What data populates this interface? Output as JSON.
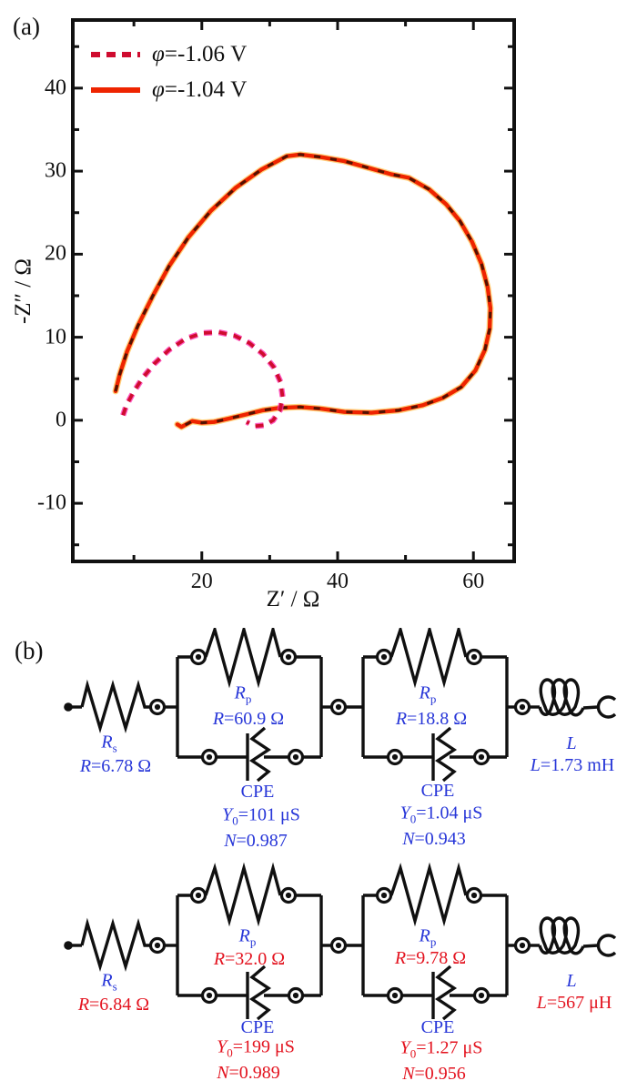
{
  "colors": {
    "symbol_blue": "#2736d8",
    "circuit_top_value": "#2736d8",
    "circuit_bottom_value": "#e3131f",
    "solid_line": "#ee2400",
    "solid_glow": "#ffa800",
    "dashed_core": "#cf0c2f",
    "dashed_fringe": "#ff30b0",
    "overlap_dash": "#1c0c02",
    "axis": "#111111"
  },
  "panel_a": {
    "label": "(a)",
    "legend": [
      {
        "symbol": "φ",
        "text": "=-1.06 V",
        "line": "dashed"
      },
      {
        "symbol": "φ",
        "text": "=-1.04 V",
        "line": "solid"
      }
    ],
    "x_axis": {
      "label": "Z′ / Ω",
      "tick_labels": [
        20,
        40,
        60
      ],
      "minor_ticks": [
        10,
        30,
        50
      ],
      "range": [
        1,
        66
      ]
    },
    "y_axis": {
      "label": "-Z″ / Ω",
      "tick_labels": [
        -10,
        0,
        10,
        20,
        30,
        40
      ],
      "minor_ticks": [
        -15,
        -5,
        5,
        15,
        25,
        35,
        45
      ],
      "range": [
        -17,
        48.2
      ]
    }
  },
  "chart_data": {
    "type": "line",
    "xlabel": "Z′ / Ω",
    "ylabel": "-Z″ / Ω",
    "xlim": [
      1,
      66
    ],
    "ylim": [
      -17,
      48.2
    ],
    "grid": false,
    "legend_position": "top-left",
    "note": "Nyquist impedance spectra; the dashed -1.06 V curve overlaps the solid -1.04 V curve along the large loop (dark dashes visible on the red line), and additionally shows a small inner loop.",
    "series": [
      {
        "name": "φ=-1.06 V",
        "style": "dashed",
        "color": "#cf0c2f",
        "points": [
          [
            8.4,
            0.6
          ],
          [
            8.9,
            1.8
          ],
          [
            9.8,
            3.2
          ],
          [
            11.2,
            5.0
          ],
          [
            13.0,
            6.8
          ],
          [
            15.2,
            8.5
          ],
          [
            17.6,
            9.8
          ],
          [
            20.1,
            10.5
          ],
          [
            22.5,
            10.6
          ],
          [
            24.8,
            10.2
          ],
          [
            27.0,
            9.3
          ],
          [
            29.0,
            8.0
          ],
          [
            30.6,
            6.4
          ],
          [
            31.6,
            4.6
          ],
          [
            31.9,
            2.8
          ],
          [
            31.5,
            1.2
          ],
          [
            30.5,
            0.0
          ],
          [
            29.2,
            -0.6
          ],
          [
            27.8,
            -0.7
          ],
          [
            26.6,
            -0.2
          ]
        ]
      },
      {
        "name": "φ=-1.04 V",
        "style": "solid",
        "color": "#ee2400",
        "points": [
          [
            7.3,
            3.5
          ],
          [
            7.9,
            5.5
          ],
          [
            9.0,
            8.3
          ],
          [
            10.6,
            11.4
          ],
          [
            12.8,
            15.0
          ],
          [
            15.2,
            18.6
          ],
          [
            18.0,
            22.0
          ],
          [
            21.3,
            25.2
          ],
          [
            25.0,
            28.0
          ],
          [
            28.8,
            30.2
          ],
          [
            32.5,
            31.8
          ],
          [
            34.5,
            32.0
          ],
          [
            37.5,
            31.7
          ],
          [
            41.0,
            31.2
          ],
          [
            44.5,
            30.4
          ],
          [
            48.0,
            29.6
          ],
          [
            50.5,
            29.2
          ],
          [
            53.5,
            27.8
          ],
          [
            56.0,
            26.0
          ],
          [
            58.0,
            24.0
          ],
          [
            59.8,
            21.5
          ],
          [
            61.2,
            18.8
          ],
          [
            62.1,
            16.0
          ],
          [
            62.5,
            13.5
          ],
          [
            62.4,
            11.0
          ],
          [
            61.7,
            8.5
          ],
          [
            60.3,
            6.0
          ],
          [
            58.2,
            4.0
          ],
          [
            55.5,
            2.7
          ],
          [
            52.5,
            1.8
          ],
          [
            49.0,
            1.2
          ],
          [
            45.0,
            0.9
          ],
          [
            41.0,
            1.0
          ],
          [
            37.5,
            1.4
          ],
          [
            34.5,
            1.6
          ],
          [
            31.5,
            1.5
          ],
          [
            29.0,
            1.2
          ],
          [
            26.5,
            0.7
          ],
          [
            24.0,
            0.2
          ],
          [
            21.8,
            -0.2
          ],
          [
            20.0,
            -0.3
          ],
          [
            18.6,
            -0.1
          ],
          [
            17.0,
            -0.8
          ],
          [
            16.4,
            -0.5
          ]
        ]
      }
    ]
  },
  "panel_b": {
    "label": "(b)",
    "circuits": [
      {
        "value_color": "#2736d8",
        "rs_sym": {
          "base": "R",
          "sub": "s"
        },
        "rs_val": {
          "base": "R",
          "rest": "=6.78 Ω"
        },
        "rp1_sym": {
          "base": "R",
          "sub": "p"
        },
        "rp1_val": {
          "base": "R",
          "rest": "=60.9 Ω"
        },
        "cpe1_label": "CPE",
        "cpe1_y0": {
          "base": "Y",
          "sub": "0",
          "rest": "=101 μS"
        },
        "cpe1_n": {
          "base": "N",
          "rest": "=0.987"
        },
        "rp2_sym": {
          "base": "R",
          "sub": "p"
        },
        "rp2_val": {
          "base": "R",
          "rest": "=18.8 Ω"
        },
        "cpe2_label": "CPE",
        "cpe2_y0": {
          "base": "Y",
          "sub": "0",
          "rest": "=1.04 μS"
        },
        "cpe2_n": {
          "base": "N",
          "rest": "=0.943"
        },
        "l_sym": {
          "base": "L"
        },
        "l_val": {
          "base": "L",
          "rest": "=1.73 mH"
        }
      },
      {
        "value_color": "#e3131f",
        "rs_sym": {
          "base": "R",
          "sub": "s"
        },
        "rs_val": {
          "base": "R",
          "rest": "=6.84 Ω"
        },
        "rp1_sym": {
          "base": "R",
          "sub": "p"
        },
        "rp1_val": {
          "base": "R",
          "rest": "=32.0 Ω"
        },
        "cpe1_label": "CPE",
        "cpe1_y0": {
          "base": "Y",
          "sub": "0",
          "rest": "=199 μS"
        },
        "cpe1_n": {
          "base": "N",
          "rest": "=0.989"
        },
        "rp2_sym": {
          "base": "R",
          "sub": "p"
        },
        "rp2_val": {
          "base": "R",
          "rest": "=9.78 Ω"
        },
        "cpe2_label": "CPE",
        "cpe2_y0": {
          "base": "Y",
          "sub": "0",
          "rest": "=1.27 μS"
        },
        "cpe2_n": {
          "base": "N",
          "rest": "=0.956"
        },
        "l_sym": {
          "base": "L"
        },
        "l_val": {
          "base": "L",
          "rest": "=567 μH"
        }
      }
    ]
  }
}
